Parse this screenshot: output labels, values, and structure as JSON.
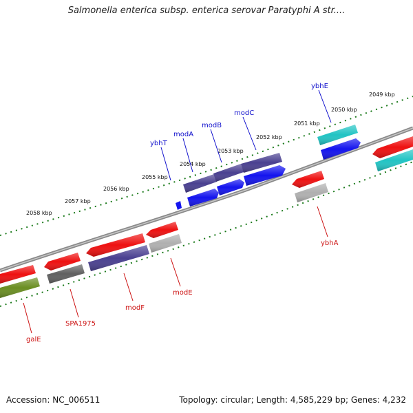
{
  "title": "Salmonella enterica subsp. enterica serovar Paratyphi A str....",
  "footer": {
    "accession": "Accession: NC_006511",
    "summary": "Topology: circular; Length: 4,585,229 bp; Genes: 4,232"
  },
  "colors": {
    "backbone": "#8a8a8a",
    "ruler_ticks": "#1b7a1b",
    "forward_label": "#1111cc",
    "reverse_label": "#cc1111",
    "red": "#ee1111",
    "blue": "#1414ee",
    "purple": "#4a4090",
    "cyan": "#22c4c4",
    "gray": "#b0b0b0",
    "darkgray": "#606060",
    "olive": "#6a8e22"
  },
  "scale_labels": [
    "2058 kbp",
    "2057 kbp",
    "2056 kbp",
    "2055 kbp",
    "2054 kbp",
    "2053 kbp",
    "2052 kbp",
    "2051 kbp",
    "2050 kbp",
    "2049 kbp"
  ],
  "forward_gene_labels": [
    "ybhT",
    "modA",
    "modB",
    "modC",
    "ybhE"
  ],
  "reverse_gene_labels": [
    "galE",
    "SPA1975",
    "modF",
    "modE",
    "ybhA"
  ]
}
